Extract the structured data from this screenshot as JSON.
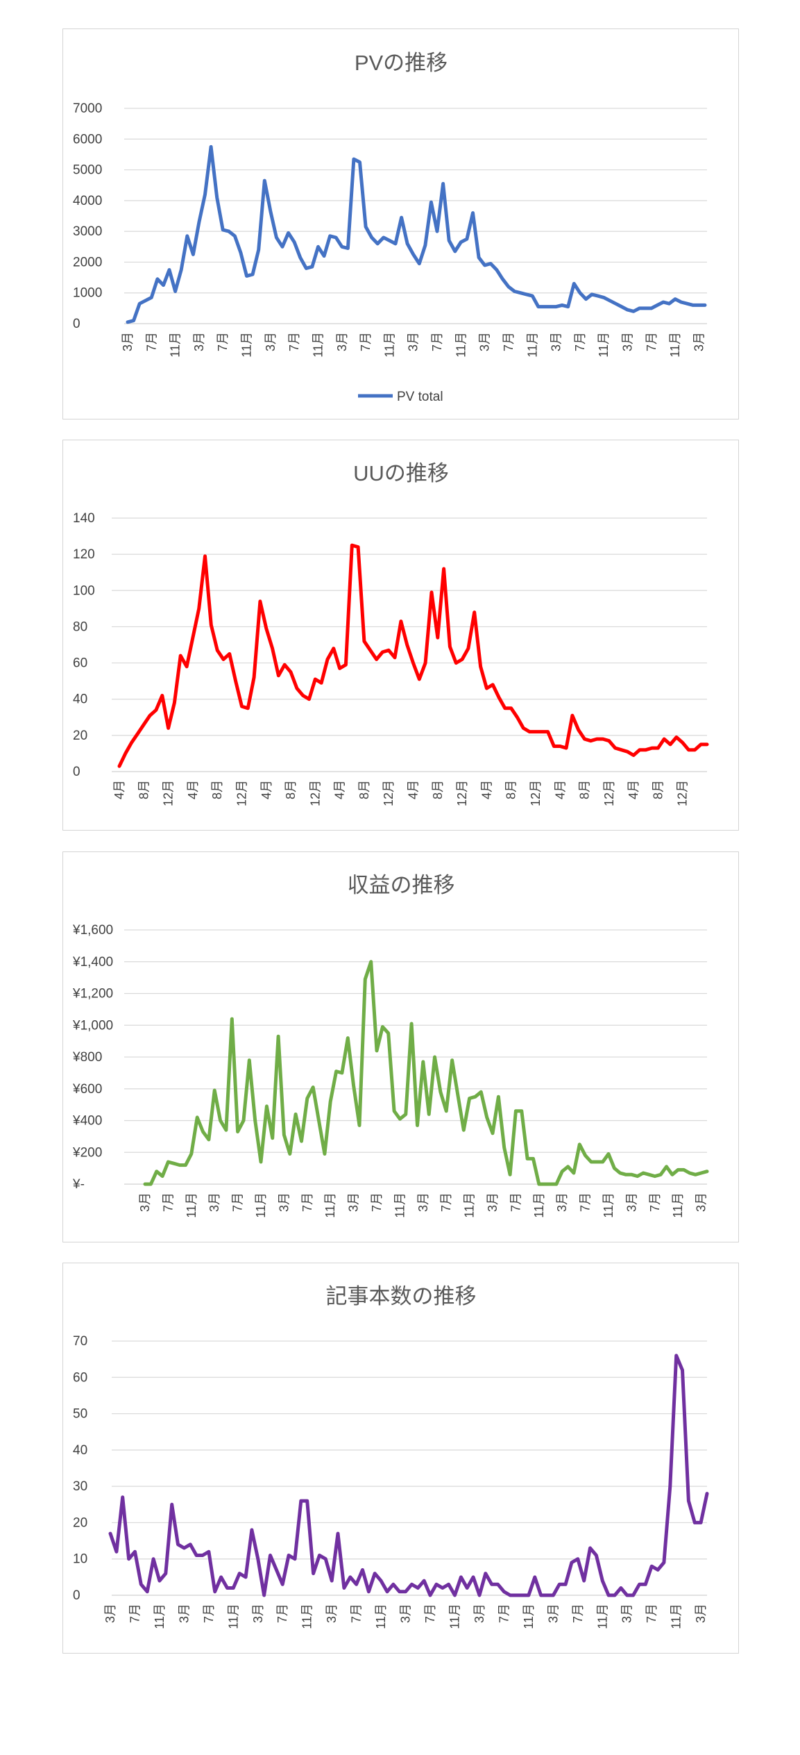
{
  "charts": [
    {
      "type": "line",
      "title": "PVの推移",
      "color": "#4472c4",
      "ylim": [
        0,
        7000
      ],
      "yticks": [
        "0",
        "1000",
        "2000",
        "3000",
        "4000",
        "5000",
        "6000",
        "7000"
      ],
      "xlabels": [
        {
          "i": 0,
          "label": "3月"
        },
        {
          "i": 4,
          "label": "7月"
        },
        {
          "i": 8,
          "label": "11月"
        },
        {
          "i": 12,
          "label": "3月"
        },
        {
          "i": 16,
          "label": "7月"
        },
        {
          "i": 20,
          "label": "11月"
        },
        {
          "i": 24,
          "label": "3月"
        },
        {
          "i": 28,
          "label": "7月"
        },
        {
          "i": 32,
          "label": "11月"
        },
        {
          "i": 36,
          "label": "3月"
        },
        {
          "i": 40,
          "label": "7月"
        },
        {
          "i": 44,
          "label": "11月"
        },
        {
          "i": 48,
          "label": "3月"
        },
        {
          "i": 52,
          "label": "7月"
        },
        {
          "i": 56,
          "label": "11月"
        },
        {
          "i": 60,
          "label": "3月"
        },
        {
          "i": 64,
          "label": "7月"
        },
        {
          "i": 68,
          "label": "11月"
        },
        {
          "i": 72,
          "label": "3月"
        },
        {
          "i": 76,
          "label": "7月"
        },
        {
          "i": 80,
          "label": "11月"
        },
        {
          "i": 84,
          "label": "3月"
        },
        {
          "i": 88,
          "label": "7月"
        },
        {
          "i": 92,
          "label": "11月"
        },
        {
          "i": 96,
          "label": "3月"
        }
      ],
      "legend": "PV total",
      "values": [
        50,
        100,
        650,
        750,
        850,
        1450,
        1250,
        1750,
        1050,
        1750,
        2850,
        2250,
        3300,
        4200,
        5750,
        4100,
        3050,
        3000,
        2850,
        2300,
        1550,
        1600,
        2400,
        4650,
        3650,
        2800,
        2500,
        2950,
        2650,
        2150,
        1800,
        1850,
        2500,
        2200,
        2850,
        2800,
        2500,
        2450,
        5350,
        5250,
        3150,
        2800,
        2600,
        2800,
        2700,
        2600,
        3450,
        2600,
        2250,
        1950,
        2550,
        3950,
        3000,
        4550,
        2700,
        2350,
        2650,
        2750,
        3600,
        2150,
        1900,
        1950,
        1750,
        1450,
        1200,
        1050,
        1000,
        950,
        900,
        550,
        550,
        550,
        550,
        600,
        550,
        1300,
        1000,
        800,
        950,
        900,
        850,
        750,
        650,
        550,
        450,
        400,
        500,
        500,
        500,
        600,
        700,
        650,
        800,
        700,
        650,
        600,
        600,
        600
      ]
    },
    {
      "type": "line",
      "title": "UUの推移",
      "color": "#ff0000",
      "ylim": [
        0,
        140
      ],
      "yticks": [
        "0",
        "20",
        "40",
        "60",
        "80",
        "100",
        "120",
        "140"
      ],
      "xlabels": [
        {
          "i": 0,
          "label": "4月"
        },
        {
          "i": 4,
          "label": "8月"
        },
        {
          "i": 8,
          "label": "12月"
        },
        {
          "i": 12,
          "label": "4月"
        },
        {
          "i": 16,
          "label": "8月"
        },
        {
          "i": 20,
          "label": "12月"
        },
        {
          "i": 24,
          "label": "4月"
        },
        {
          "i": 28,
          "label": "8月"
        },
        {
          "i": 32,
          "label": "12月"
        },
        {
          "i": 36,
          "label": "4月"
        },
        {
          "i": 40,
          "label": "8月"
        },
        {
          "i": 44,
          "label": "12月"
        },
        {
          "i": 48,
          "label": "4月"
        },
        {
          "i": 52,
          "label": "8月"
        },
        {
          "i": 56,
          "label": "12月"
        },
        {
          "i": 60,
          "label": "4月"
        },
        {
          "i": 64,
          "label": "8月"
        },
        {
          "i": 68,
          "label": "12月"
        },
        {
          "i": 72,
          "label": "4月"
        },
        {
          "i": 76,
          "label": "8月"
        },
        {
          "i": 80,
          "label": "12月"
        },
        {
          "i": 84,
          "label": "4月"
        },
        {
          "i": 88,
          "label": "8月"
        },
        {
          "i": 92,
          "label": "12月"
        }
      ],
      "legend": "",
      "values": [
        3,
        10,
        16,
        21,
        26,
        31,
        34,
        42,
        24,
        38,
        64,
        58,
        74,
        90,
        119,
        81,
        67,
        62,
        65,
        50,
        36,
        35,
        52,
        94,
        79,
        68,
        53,
        59,
        55,
        46,
        42,
        40,
        51,
        49,
        62,
        68,
        57,
        59,
        125,
        124,
        72,
        67,
        62,
        66,
        67,
        63,
        83,
        70,
        60,
        51,
        60,
        99,
        74,
        112,
        69,
        60,
        62,
        68,
        88,
        58,
        46,
        48,
        41,
        35,
        35,
        30,
        24,
        22,
        22,
        22,
        22,
        14,
        14,
        13,
        31,
        23,
        18,
        17,
        18,
        18,
        17,
        13,
        12,
        11,
        9,
        12,
        12,
        13,
        13,
        18,
        15,
        19,
        16,
        12,
        12,
        15,
        15
      ]
    },
    {
      "type": "line",
      "title": "収益の推移",
      "color": "#70ad47",
      "ylim": [
        0,
        1600
      ],
      "yticks": [
        "¥-",
        "¥200",
        "¥400",
        "¥600",
        "¥800",
        "¥1,000",
        "¥1,200",
        "¥1,400",
        "¥1,600"
      ],
      "xlabels": [
        {
          "i": 0,
          "label": "3月"
        },
        {
          "i": 4,
          "label": "7月"
        },
        {
          "i": 8,
          "label": "11月"
        },
        {
          "i": 12,
          "label": "3月"
        },
        {
          "i": 16,
          "label": "7月"
        },
        {
          "i": 20,
          "label": "11月"
        },
        {
          "i": 24,
          "label": "3月"
        },
        {
          "i": 28,
          "label": "7月"
        },
        {
          "i": 32,
          "label": "11月"
        },
        {
          "i": 36,
          "label": "3月"
        },
        {
          "i": 40,
          "label": "7月"
        },
        {
          "i": 44,
          "label": "11月"
        },
        {
          "i": 48,
          "label": "3月"
        },
        {
          "i": 52,
          "label": "7月"
        },
        {
          "i": 56,
          "label": "11月"
        },
        {
          "i": 60,
          "label": "3月"
        },
        {
          "i": 64,
          "label": "7月"
        },
        {
          "i": 68,
          "label": "11月"
        },
        {
          "i": 72,
          "label": "3月"
        },
        {
          "i": 76,
          "label": "7月"
        },
        {
          "i": 80,
          "label": "11月"
        },
        {
          "i": 84,
          "label": "3月"
        },
        {
          "i": 88,
          "label": "7月"
        },
        {
          "i": 92,
          "label": "11月"
        },
        {
          "i": 96,
          "label": "3月"
        }
      ],
      "legend": "",
      "values": [
        0,
        0,
        80,
        50,
        140,
        130,
        120,
        120,
        190,
        420,
        330,
        280,
        590,
        400,
        340,
        1040,
        330,
        400,
        780,
        400,
        140,
        490,
        290,
        930,
        310,
        190,
        440,
        270,
        540,
        610,
        400,
        190,
        520,
        710,
        700,
        920,
        620,
        370,
        1290,
        1400,
        840,
        990,
        950,
        460,
        410,
        440,
        1010,
        370,
        770,
        440,
        800,
        580,
        460,
        780,
        560,
        340,
        540,
        550,
        580,
        420,
        320,
        550,
        230,
        60,
        460,
        460,
        160,
        160,
        0,
        0,
        0,
        0,
        80,
        110,
        70,
        250,
        180,
        140,
        140,
        140,
        190,
        100,
        70,
        60,
        60,
        50,
        70,
        60,
        50,
        60,
        110,
        60,
        90,
        90,
        70,
        60,
        70,
        80
      ]
    },
    {
      "type": "line",
      "title": "記事本数の推移",
      "color": "#7030a0",
      "ylim": [
        0,
        70
      ],
      "yticks": [
        "0",
        "10",
        "20",
        "30",
        "40",
        "50",
        "60",
        "70"
      ],
      "xlabels": [
        {
          "i": 0,
          "label": "3月"
        },
        {
          "i": 4,
          "label": "7月"
        },
        {
          "i": 8,
          "label": "11月"
        },
        {
          "i": 12,
          "label": "3月"
        },
        {
          "i": 16,
          "label": "7月"
        },
        {
          "i": 20,
          "label": "11月"
        },
        {
          "i": 24,
          "label": "3月"
        },
        {
          "i": 28,
          "label": "7月"
        },
        {
          "i": 32,
          "label": "11月"
        },
        {
          "i": 36,
          "label": "3月"
        },
        {
          "i": 40,
          "label": "7月"
        },
        {
          "i": 44,
          "label": "11月"
        },
        {
          "i": 48,
          "label": "3月"
        },
        {
          "i": 52,
          "label": "7月"
        },
        {
          "i": 56,
          "label": "11月"
        },
        {
          "i": 60,
          "label": "3月"
        },
        {
          "i": 64,
          "label": "7月"
        },
        {
          "i": 68,
          "label": "11月"
        },
        {
          "i": 72,
          "label": "3月"
        },
        {
          "i": 76,
          "label": "7月"
        },
        {
          "i": 80,
          "label": "11月"
        },
        {
          "i": 84,
          "label": "3月"
        },
        {
          "i": 88,
          "label": "7月"
        },
        {
          "i": 92,
          "label": "11月"
        },
        {
          "i": 96,
          "label": "3月"
        }
      ],
      "legend": "",
      "values": [
        17,
        12,
        27,
        10,
        12,
        3,
        1,
        10,
        4,
        6,
        25,
        14,
        13,
        14,
        11,
        11,
        12,
        1,
        5,
        2,
        2,
        6,
        5,
        18,
        10,
        0,
        11,
        7,
        3,
        11,
        10,
        26,
        26,
        6,
        11,
        10,
        4,
        17,
        2,
        5,
        3,
        7,
        1,
        6,
        4,
        1,
        3,
        1,
        1,
        3,
        2,
        4,
        0,
        3,
        2,
        3,
        0,
        5,
        2,
        5,
        0,
        6,
        3,
        3,
        1,
        0,
        0,
        0,
        0,
        5,
        0,
        0,
        0,
        3,
        3,
        9,
        10,
        4,
        13,
        11,
        4,
        0,
        0,
        2,
        0,
        0,
        3,
        3,
        8,
        7,
        9,
        30,
        66,
        62,
        26,
        20,
        20,
        28
      ]
    }
  ]
}
